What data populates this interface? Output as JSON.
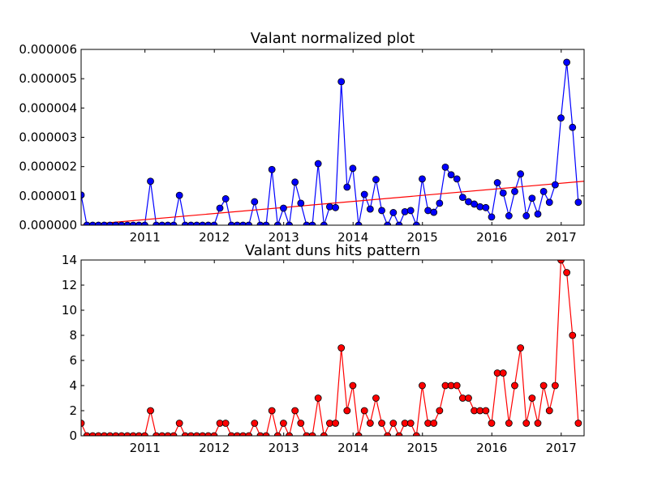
{
  "chart_data": [
    {
      "type": "line",
      "title": "Valant normalized plot",
      "xlabel": "",
      "ylabel": "",
      "ylim": [
        0,
        6e-06
      ],
      "xlim": [
        2010.08,
        2017.33
      ],
      "yticks": [
        "0.000000",
        "0.000001",
        "0.000002",
        "0.000003",
        "0.000004",
        "0.000005",
        "0.000006"
      ],
      "xticks": [
        "2011",
        "2012",
        "2013",
        "2014",
        "2015",
        "2016",
        "2017"
      ],
      "line_color": "#0000ff",
      "marker_color": "#0000ff",
      "trend": {
        "color": "#ff0000",
        "y_start": 0.0,
        "y_end": 1.5e-06
      },
      "values": [
        1.03e-06,
        0,
        0,
        0,
        0,
        0,
        0,
        0,
        0,
        0,
        0,
        0,
        1.5e-06,
        0,
        0,
        0,
        0,
        1.02e-06,
        0,
        0,
        0,
        0,
        0,
        0,
        5.8e-07,
        9e-07,
        0,
        0,
        0,
        0,
        8e-07,
        0,
        0,
        1.9e-06,
        0,
        5.8e-07,
        0,
        1.47e-06,
        7.5e-07,
        0,
        0,
        2.1e-06,
        0,
        6.3e-07,
        6e-07,
        4.9e-06,
        1.3e-06,
        1.94e-06,
        0,
        1.05e-06,
        5.5e-07,
        1.56e-06,
        5e-07,
        0,
        4.3e-07,
        0,
        4.6e-07,
        5e-07,
        0,
        1.58e-06,
        5e-07,
        4.4e-07,
        7.5e-07,
        1.98e-06,
        1.72e-06,
        1.58e-06,
        9.5e-07,
        8e-07,
        7.2e-07,
        6.3e-07,
        6e-07,
        2.8e-07,
        1.45e-06,
        1.1e-06,
        3.2e-07,
        1.15e-06,
        1.75e-06,
        3.2e-07,
        9.2e-07,
        3.8e-07,
        1.15e-06,
        7.8e-07,
        1.38e-06,
        3.66e-06,
        5.56e-06,
        3.34e-06,
        7.8e-07
      ]
    },
    {
      "type": "line",
      "title": "Valant duns hits pattern",
      "xlabel": "",
      "ylabel": "",
      "ylim": [
        0,
        14
      ],
      "xlim": [
        2010.08,
        2017.33
      ],
      "yticks": [
        "0",
        "2",
        "4",
        "6",
        "8",
        "10",
        "12",
        "14"
      ],
      "xticks": [
        "2011",
        "2012",
        "2013",
        "2014",
        "2015",
        "2016",
        "2017"
      ],
      "line_color": "#ff0000",
      "marker_color": "#ff0000",
      "values": [
        1,
        0,
        0,
        0,
        0,
        0,
        0,
        0,
        0,
        0,
        0,
        0,
        2,
        0,
        0,
        0,
        0,
        1,
        0,
        0,
        0,
        0,
        0,
        0,
        1,
        1,
        0,
        0,
        0,
        0,
        1,
        0,
        0,
        2,
        0,
        1,
        0,
        2,
        1,
        0,
        0,
        3,
        0,
        1,
        1,
        7,
        2,
        4,
        0,
        2,
        1,
        3,
        1,
        0,
        1,
        0,
        1,
        1,
        0,
        4,
        1,
        1,
        2,
        4,
        4,
        4,
        3,
        3,
        2,
        2,
        2,
        1,
        5,
        5,
        1,
        4,
        7,
        1,
        3,
        1,
        4,
        2,
        4,
        14,
        13,
        8,
        1
      ]
    }
  ]
}
